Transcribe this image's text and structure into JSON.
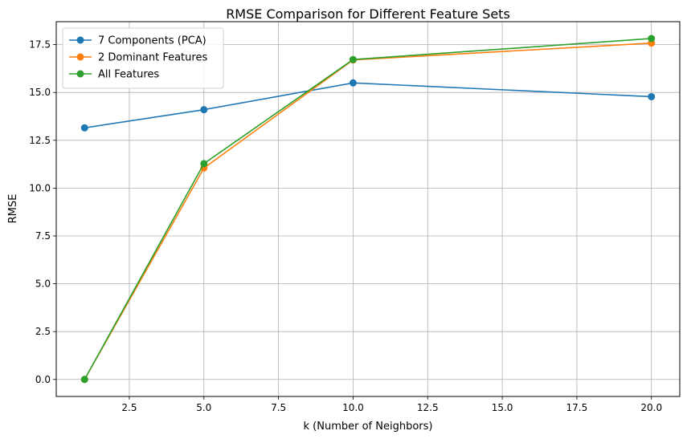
{
  "chart_data": {
    "type": "line",
    "title": "RMSE Comparison for Different Feature Sets",
    "xlabel": "k (Number of Neighbors)",
    "ylabel": "RMSE",
    "xlim": [
      0.05,
      20.95
    ],
    "ylim": [
      -0.89,
      18.7
    ],
    "x_ticks": [
      2.5,
      5.0,
      7.5,
      10.0,
      12.5,
      15.0,
      17.5,
      20.0
    ],
    "x_tick_labels": [
      "2.5",
      "5.0",
      "7.5",
      "10.0",
      "12.5",
      "15.0",
      "17.5",
      "20.0"
    ],
    "y_ticks": [
      0.0,
      2.5,
      5.0,
      7.5,
      10.0,
      12.5,
      15.0,
      17.5
    ],
    "y_tick_labels": [
      "0.0",
      "2.5",
      "5.0",
      "7.5",
      "10.0",
      "12.5",
      "15.0",
      "17.5"
    ],
    "grid": true,
    "legend_position": "upper-left",
    "x": [
      1,
      5,
      10,
      20
    ],
    "series": [
      {
        "name": "7 Components (PCA)",
        "color": "#1f77b4",
        "values": [
          13.15,
          14.1,
          15.5,
          14.78
        ]
      },
      {
        "name": "2 Dominant Features",
        "color": "#ff7f0e",
        "values": [
          0.0,
          11.05,
          16.7,
          17.58
        ]
      },
      {
        "name": "All Features",
        "color": "#2ca02c",
        "values": [
          0.0,
          11.28,
          16.72,
          17.82
        ]
      }
    ],
    "marker": "circle"
  }
}
